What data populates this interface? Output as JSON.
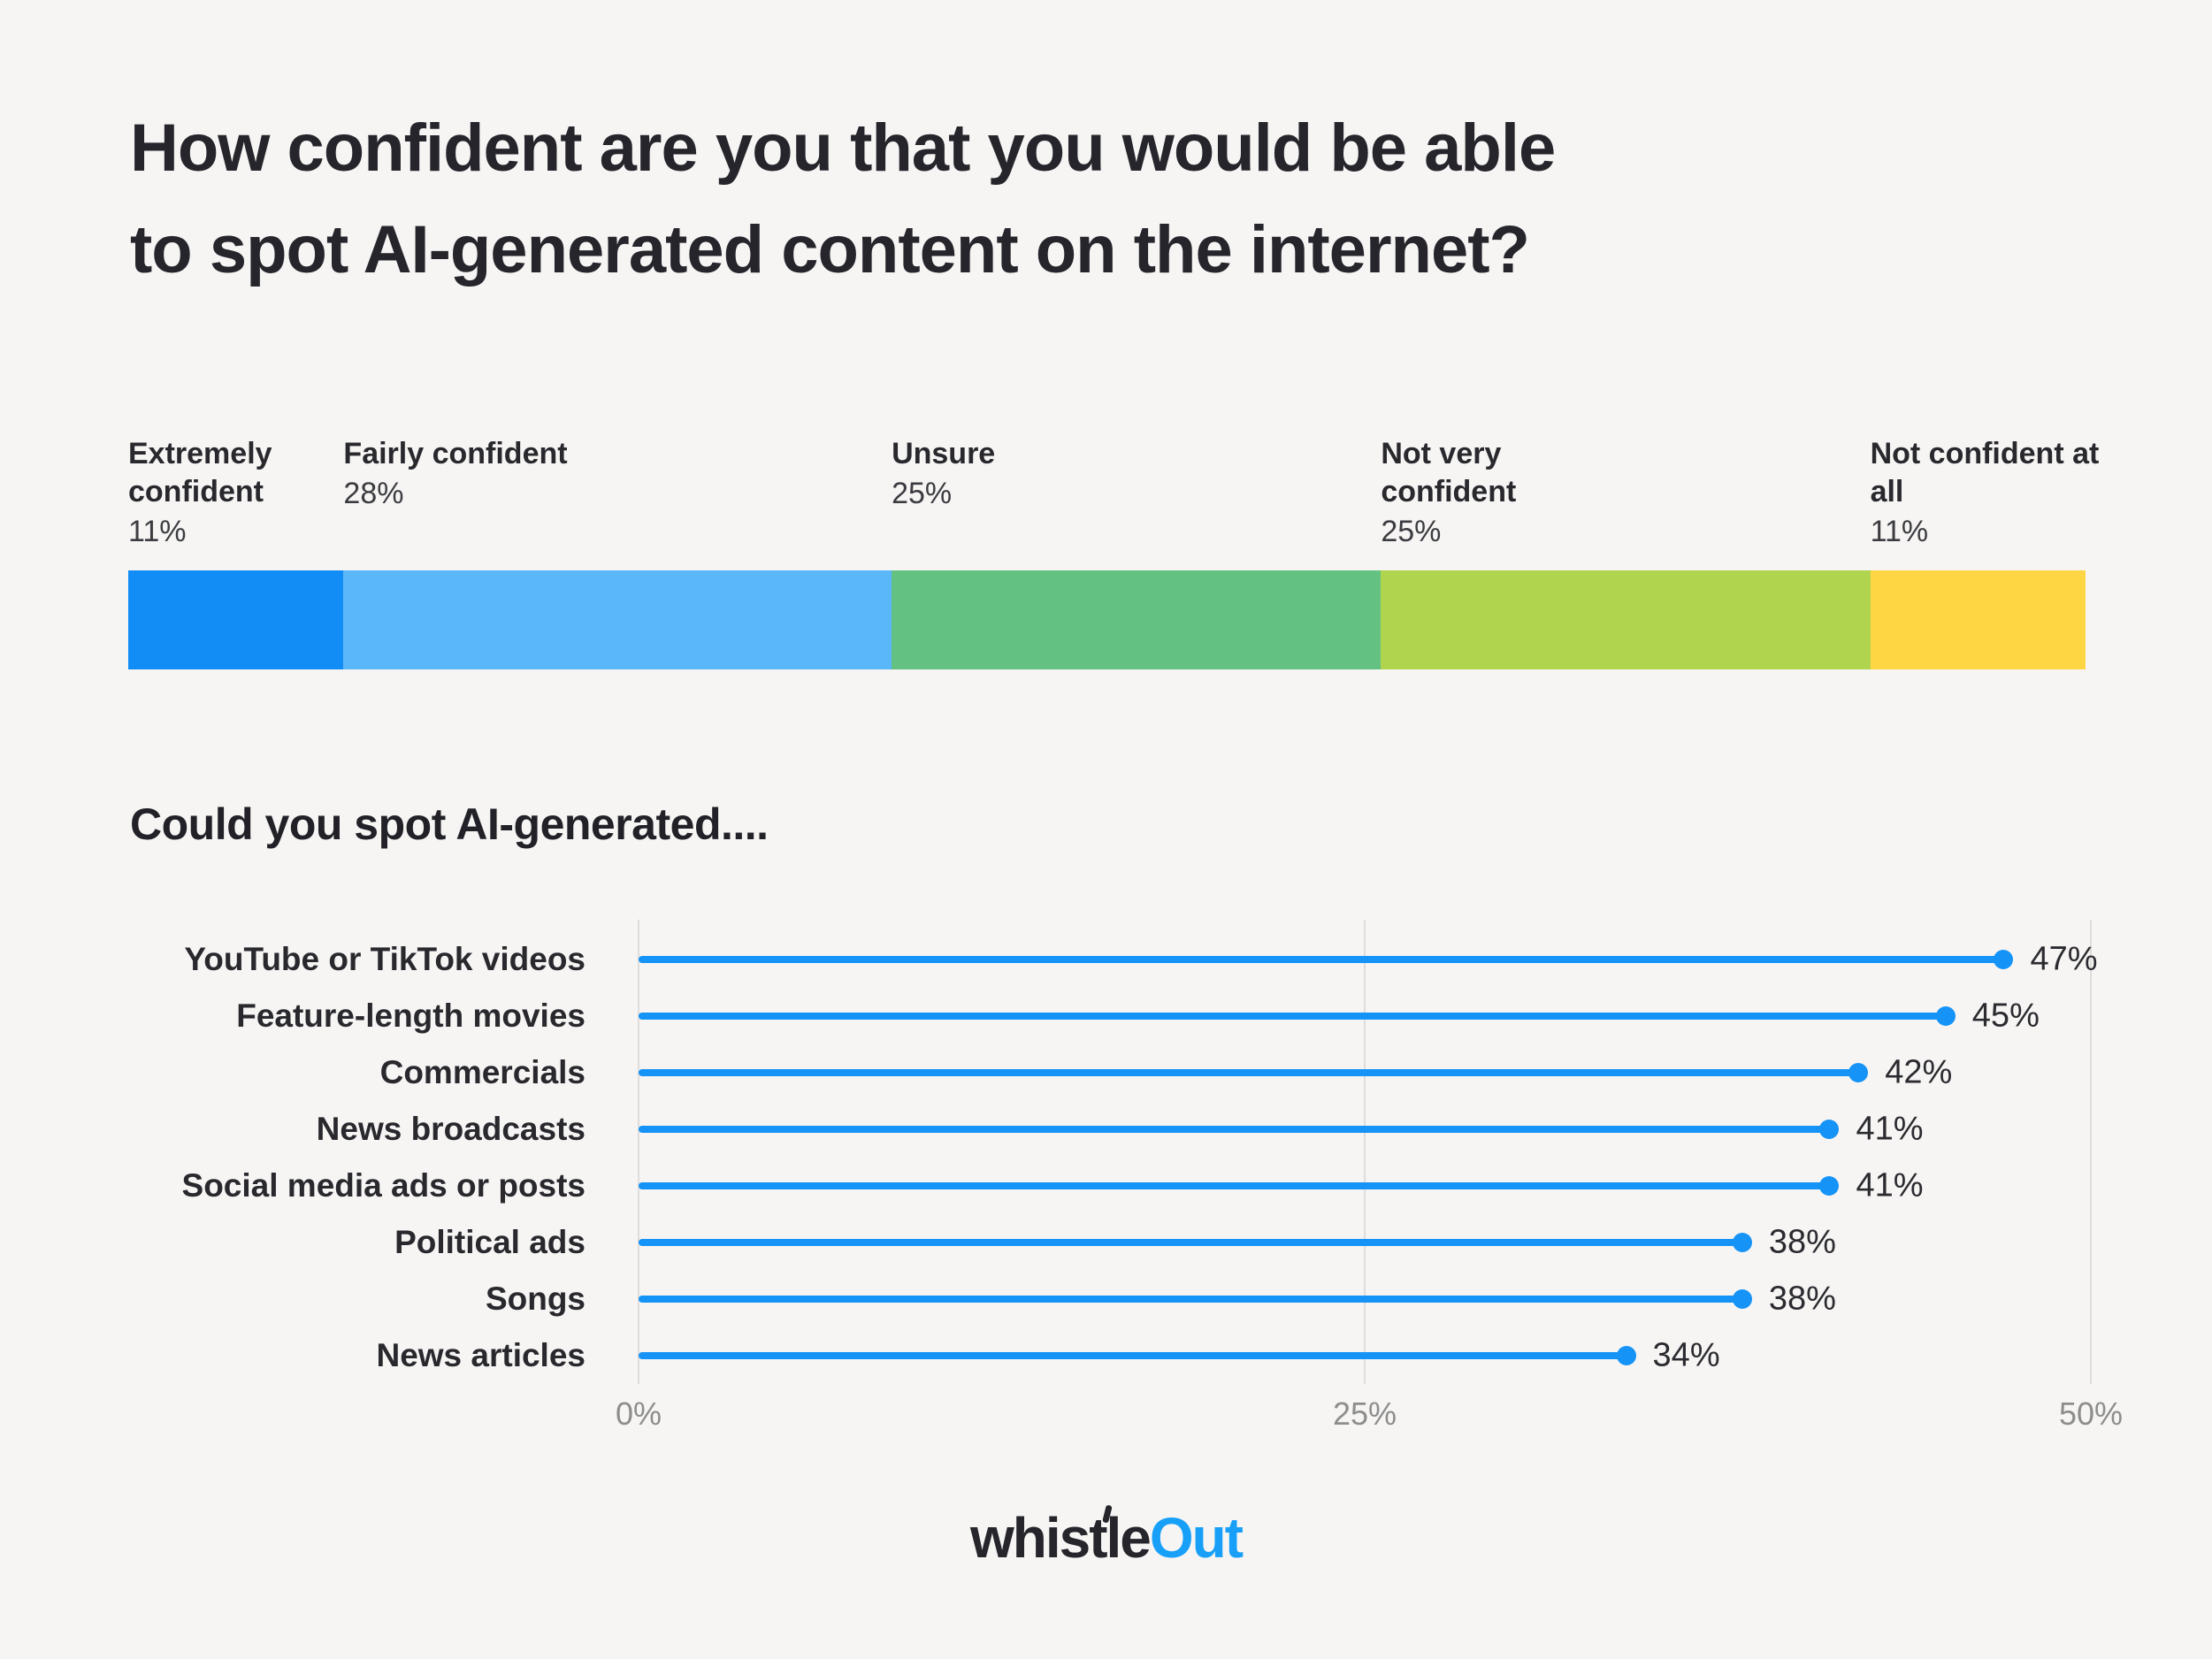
{
  "title": {
    "lines": [
      "How confident are you that you would be able",
      "to spot AI-generated content on the internet?"
    ]
  },
  "chart_data": [
    {
      "type": "bar",
      "subtype": "stacked-horizontal-single-bar",
      "title": "How confident are you that you would be able to spot AI-generated content on the internet?",
      "unit": "%",
      "segments": [
        {
          "label": "Extremely confident",
          "value": 11,
          "color": "#128df6"
        },
        {
          "label": "Fairly confident",
          "value": 28,
          "color": "#5ab7f9"
        },
        {
          "label": "Unsure",
          "value": 25,
          "color": "#63c282"
        },
        {
          "label": "Not very confident",
          "value": 25,
          "color": "#b1d44f"
        },
        {
          "label": "Not confident at all",
          "value": 11,
          "color": "#fed643"
        }
      ]
    },
    {
      "type": "bar",
      "subtype": "lollipop-horizontal",
      "title": "Could you spot AI-generated....",
      "categories": [
        "YouTube or TikTok videos",
        "Feature-length movies",
        "Commercials",
        "News broadcasts",
        "Social media ads or posts",
        "Political ads",
        "Songs",
        "News articles"
      ],
      "values": [
        47,
        45,
        42,
        41,
        41,
        38,
        38,
        34
      ],
      "value_suffix": "%",
      "xlim": [
        0,
        50
      ],
      "x_tick_values": [
        0,
        25,
        50
      ],
      "x_tick_labels": [
        "0%",
        "25%",
        "50%"
      ],
      "accent_color": "#1593f6",
      "grid": true,
      "legend": "none"
    }
  ],
  "section2_title": "Could you spot AI-generated....",
  "footer": {
    "logo_part1": "whistle",
    "logo_part2": "Out",
    "logo_accent_color": "#18a0f8"
  }
}
